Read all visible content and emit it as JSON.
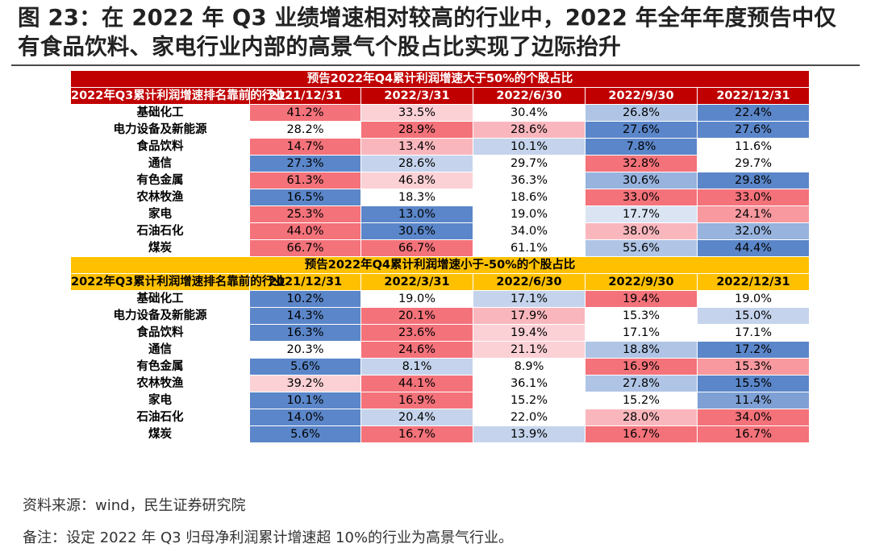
{
  "title": "图 23：在 2022 年 Q3 业绩增速相对较高的行业中，2022 年全年年度预告中仅有食品饮料、家电行业内部的高景气个股占比实现了边际抬升",
  "source": "资料来源：wind，民生证券研究院",
  "note": "备注：设定 2022 年 Q3 归母净利润累计增速超 10%的行业为高景气行业。",
  "colors": {
    "red_header": "#c00000",
    "yellow_header": "#ffc000"
  },
  "sections": [
    {
      "id": "red",
      "banner": "预告2022年Q4累计利润增速大于50%的个股占比",
      "corner": "2022年Q3累计利润增速排名靠前的行业",
      "columns": [
        "2021/12/31",
        "2022/3/31",
        "2022/6/30",
        "2022/9/30",
        "2022/12/31"
      ],
      "rows": [
        {
          "label": "基础化工",
          "cells": [
            {
              "v": "41.2%",
              "c": "#f4727a"
            },
            {
              "v": "33.5%",
              "c": "#fbd1d6"
            },
            {
              "v": "30.4%",
              "c": "#ffffff"
            },
            {
              "v": "26.8%",
              "c": "#b0c5e5"
            },
            {
              "v": "22.4%",
              "c": "#5b86c9"
            }
          ]
        },
        {
          "label": "电力设备及新能源",
          "cells": [
            {
              "v": "28.2%",
              "c": "#ffffff"
            },
            {
              "v": "28.9%",
              "c": "#f4727a"
            },
            {
              "v": "28.6%",
              "c": "#f9b7bd"
            },
            {
              "v": "27.6%",
              "c": "#5b86c9"
            },
            {
              "v": "27.6%",
              "c": "#5b86c9"
            }
          ]
        },
        {
          "label": "食品饮料",
          "cells": [
            {
              "v": "14.7%",
              "c": "#f4727a"
            },
            {
              "v": "13.4%",
              "c": "#f9b7bd"
            },
            {
              "v": "10.1%",
              "c": "#c5d4ec"
            },
            {
              "v": "7.8%",
              "c": "#5b86c9"
            },
            {
              "v": "11.6%",
              "c": "#ffffff"
            }
          ]
        },
        {
          "label": "通信",
          "cells": [
            {
              "v": "27.3%",
              "c": "#5b86c9"
            },
            {
              "v": "28.6%",
              "c": "#c5d4ec"
            },
            {
              "v": "29.7%",
              "c": "#ffffff"
            },
            {
              "v": "32.8%",
              "c": "#f4727a"
            },
            {
              "v": "29.7%",
              "c": "#ffffff"
            }
          ]
        },
        {
          "label": "有色金属",
          "cells": [
            {
              "v": "61.3%",
              "c": "#f4727a"
            },
            {
              "v": "46.8%",
              "c": "#fbd1d6"
            },
            {
              "v": "36.3%",
              "c": "#ffffff"
            },
            {
              "v": "30.6%",
              "c": "#97b3de"
            },
            {
              "v": "29.8%",
              "c": "#5b86c9"
            }
          ]
        },
        {
          "label": "农林牧渔",
          "cells": [
            {
              "v": "16.5%",
              "c": "#5b86c9"
            },
            {
              "v": "18.3%",
              "c": "#ffffff"
            },
            {
              "v": "18.6%",
              "c": "#ffffff"
            },
            {
              "v": "33.0%",
              "c": "#f4727a"
            },
            {
              "v": "33.0%",
              "c": "#f4727a"
            }
          ]
        },
        {
          "label": "家电",
          "cells": [
            {
              "v": "25.3%",
              "c": "#f4727a"
            },
            {
              "v": "13.0%",
              "c": "#5b86c9"
            },
            {
              "v": "19.0%",
              "c": "#ffffff"
            },
            {
              "v": "17.7%",
              "c": "#dbe4f3"
            },
            {
              "v": "24.1%",
              "c": "#f7999f"
            }
          ]
        },
        {
          "label": "石油石化",
          "cells": [
            {
              "v": "44.0%",
              "c": "#f4727a"
            },
            {
              "v": "30.6%",
              "c": "#5b86c9"
            },
            {
              "v": "34.0%",
              "c": "#ffffff"
            },
            {
              "v": "38.0%",
              "c": "#f9b7bd"
            },
            {
              "v": "32.0%",
              "c": "#97b3de"
            }
          ]
        },
        {
          "label": "煤炭",
          "cells": [
            {
              "v": "66.7%",
              "c": "#f4727a"
            },
            {
              "v": "66.7%",
              "c": "#f4727a"
            },
            {
              "v": "61.1%",
              "c": "#ffffff"
            },
            {
              "v": "55.6%",
              "c": "#b0c5e5"
            },
            {
              "v": "44.4%",
              "c": "#5b86c9"
            }
          ]
        }
      ]
    },
    {
      "id": "yellow",
      "banner": "预告2022年Q4累计利润增速小于-50%的个股占比",
      "corner": "2022年Q3累计利润增速排名靠前的行业",
      "columns": [
        "2021/12/31",
        "2022/3/31",
        "2022/6/30",
        "2022/9/30",
        "2022/12/31"
      ],
      "rows": [
        {
          "label": "基础化工",
          "cells": [
            {
              "v": "10.2%",
              "c": "#5b86c9"
            },
            {
              "v": "19.0%",
              "c": "#ffffff"
            },
            {
              "v": "17.1%",
              "c": "#c5d4ec"
            },
            {
              "v": "19.4%",
              "c": "#f4727a"
            },
            {
              "v": "19.0%",
              "c": "#ffffff"
            }
          ]
        },
        {
          "label": "电力设备及新能源",
          "cells": [
            {
              "v": "14.3%",
              "c": "#5b86c9"
            },
            {
              "v": "20.1%",
              "c": "#f4727a"
            },
            {
              "v": "17.9%",
              "c": "#f9b7bd"
            },
            {
              "v": "15.3%",
              "c": "#ffffff"
            },
            {
              "v": "15.0%",
              "c": "#c5d4ec"
            }
          ]
        },
        {
          "label": "食品饮料",
          "cells": [
            {
              "v": "16.3%",
              "c": "#5b86c9"
            },
            {
              "v": "23.6%",
              "c": "#f4727a"
            },
            {
              "v": "19.4%",
              "c": "#fbd1d6"
            },
            {
              "v": "17.1%",
              "c": "#ffffff"
            },
            {
              "v": "17.1%",
              "c": "#ffffff"
            }
          ]
        },
        {
          "label": "通信",
          "cells": [
            {
              "v": "20.3%",
              "c": "#ffffff"
            },
            {
              "v": "24.6%",
              "c": "#f4727a"
            },
            {
              "v": "21.1%",
              "c": "#fbd1d6"
            },
            {
              "v": "18.8%",
              "c": "#b0c5e5"
            },
            {
              "v": "17.2%",
              "c": "#5b86c9"
            }
          ]
        },
        {
          "label": "有色金属",
          "cells": [
            {
              "v": "5.6%",
              "c": "#5b86c9"
            },
            {
              "v": "8.1%",
              "c": "#c5d4ec"
            },
            {
              "v": "8.9%",
              "c": "#ffffff"
            },
            {
              "v": "16.9%",
              "c": "#f4727a"
            },
            {
              "v": "15.3%",
              "c": "#f7999f"
            }
          ]
        },
        {
          "label": "农林牧渔",
          "cells": [
            {
              "v": "39.2%",
              "c": "#fbd1d6"
            },
            {
              "v": "44.1%",
              "c": "#f4727a"
            },
            {
              "v": "36.1%",
              "c": "#ffffff"
            },
            {
              "v": "27.8%",
              "c": "#b0c5e5"
            },
            {
              "v": "15.5%",
              "c": "#5b86c9"
            }
          ]
        },
        {
          "label": "家电",
          "cells": [
            {
              "v": "10.1%",
              "c": "#5b86c9"
            },
            {
              "v": "16.9%",
              "c": "#f4727a"
            },
            {
              "v": "15.2%",
              "c": "#ffffff"
            },
            {
              "v": "15.2%",
              "c": "#ffffff"
            },
            {
              "v": "11.4%",
              "c": "#7ea0d5"
            }
          ]
        },
        {
          "label": "石油石化",
          "cells": [
            {
              "v": "14.0%",
              "c": "#5b86c9"
            },
            {
              "v": "20.4%",
              "c": "#c5d4ec"
            },
            {
              "v": "22.0%",
              "c": "#ffffff"
            },
            {
              "v": "28.0%",
              "c": "#f9b7bd"
            },
            {
              "v": "34.0%",
              "c": "#f4727a"
            }
          ]
        },
        {
          "label": "煤炭",
          "cells": [
            {
              "v": "5.6%",
              "c": "#5b86c9"
            },
            {
              "v": "16.7%",
              "c": "#f4727a"
            },
            {
              "v": "13.9%",
              "c": "#c5d4ec"
            },
            {
              "v": "16.7%",
              "c": "#f4727a"
            },
            {
              "v": "16.7%",
              "c": "#f4727a"
            }
          ]
        }
      ]
    }
  ]
}
